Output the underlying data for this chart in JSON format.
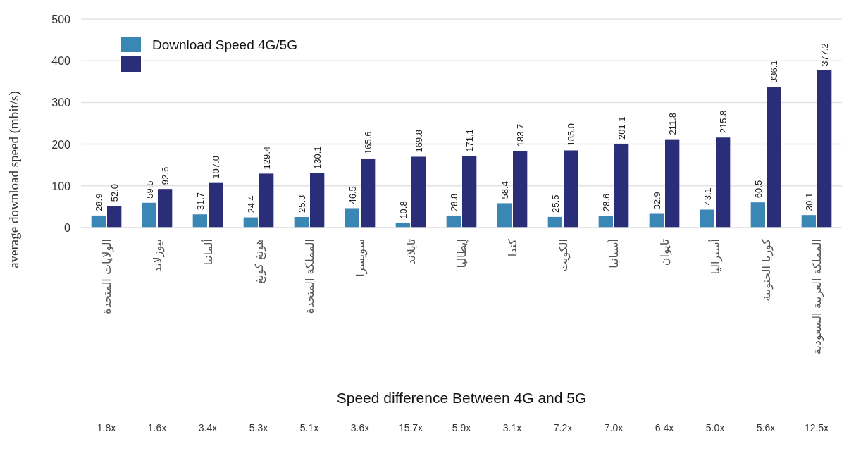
{
  "chart_data": {
    "type": "bar",
    "ylabel": "average download speed (mbit/s)",
    "categories": [
      "الولايات المتحدة",
      "نيوزلاند",
      "ألمانيا",
      "هونغ كونغ",
      "المملكة المتحدة",
      "سويسرا",
      "تايلاند",
      "إيطاليا",
      "كندا",
      "الكويت",
      "أسبانيا",
      "تايوان",
      "أستراليا",
      "كوريا الجنوبية",
      "المملكة العربية السعودية"
    ],
    "series": [
      {
        "name": "Download Speed 4G/5G",
        "color": "#3a87b5",
        "values": [
          28.9,
          59.5,
          31.7,
          24.4,
          25.3,
          46.5,
          10.8,
          28.8,
          58.4,
          25.5,
          28.6,
          32.9,
          43.1,
          60.5,
          30.1
        ],
        "value_labels": [
          "28.9",
          "59.5",
          "31.7",
          "24.4",
          "25.3",
          "46.5",
          "10.8",
          "28.8",
          "58.4",
          "25.5",
          "28.6",
          "32.9",
          "43.1",
          "60.5",
          "30.1"
        ]
      },
      {
        "color": "#2a2e78",
        "values": [
          52.0,
          92.6,
          107.0,
          129.4,
          130.1,
          165.6,
          169.8,
          171.1,
          183.7,
          185.0,
          201.1,
          211.8,
          215.8,
          336.1,
          377.2
        ],
        "value_labels": [
          "52.0",
          "92.6",
          "107.0",
          "129.4",
          "130.1",
          "165.6",
          "169.8",
          "171.1",
          "183.7",
          "185.0",
          "201.1",
          "211.8",
          "215.8",
          "336.1",
          "377.2"
        ]
      }
    ],
    "ylim": [
      0,
      500
    ],
    "yticks": [
      0,
      100,
      200,
      300,
      400,
      500
    ],
    "grid": "y",
    "legend": "top left",
    "annotations": [
      "Speed difference Between 4G and 5G",
      "1.8x",
      "1.6x",
      "3.4x",
      "5.3x",
      "5.1x",
      "3.6x",
      "15.7x",
      "5.9x",
      "3.1x",
      "7.2x",
      "7.0x",
      "6.4x",
      "5.0x",
      "5.6x",
      "12.5x"
    ]
  }
}
